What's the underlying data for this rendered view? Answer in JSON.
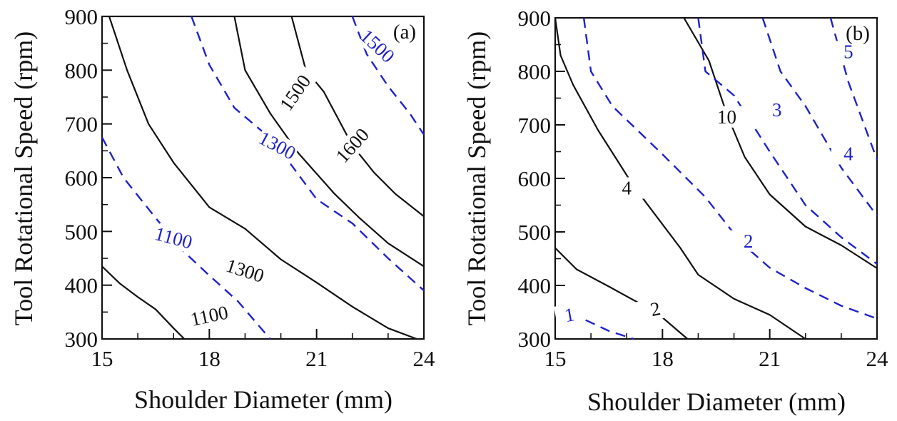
{
  "colors": {
    "black_contour": "#111111",
    "blue_contour": "#1f22c8",
    "axis": "#111111"
  },
  "chart_data": [
    {
      "type": "contour",
      "panel_label": "(a)",
      "xlabel": "Shoulder Diameter (mm)",
      "ylabel": "Tool Rotational Speed (rpm)",
      "xlim": [
        15,
        24
      ],
      "ylim": [
        300,
        900
      ],
      "xticks": [
        15,
        18,
        21,
        24
      ],
      "xtick_labels": [
        "15",
        "18",
        "21",
        "24"
      ],
      "yticks": [
        300,
        400,
        500,
        600,
        700,
        800,
        900
      ],
      "ytick_labels": [
        "300",
        "400",
        "500",
        "600",
        "700",
        "800",
        "900"
      ],
      "grid": false,
      "series": [
        {
          "label": "1100",
          "style": "solid",
          "color": "#111111",
          "points": [
            [
              15,
              435
            ],
            [
              15.5,
              403
            ],
            [
              16,
              378
            ],
            [
              16.5,
              355
            ],
            [
              17,
              320
            ],
            [
              17.3,
              300
            ]
          ]
        },
        {
          "label": "1300",
          "style": "solid",
          "color": "#111111",
          "points": [
            [
              15.2,
              900
            ],
            [
              15.7,
              800
            ],
            [
              16.3,
              700
            ],
            [
              17.0,
              628
            ],
            [
              18.0,
              545
            ],
            [
              19.0,
              505
            ],
            [
              20.0,
              448
            ],
            [
              21.0,
              405
            ],
            [
              22.0,
              360
            ],
            [
              23.0,
              320
            ],
            [
              23.8,
              300
            ]
          ]
        },
        {
          "label": "1500",
          "style": "solid",
          "color": "#111111",
          "points": [
            [
              18.7,
              900
            ],
            [
              19.0,
              800
            ],
            [
              19.7,
              720
            ],
            [
              20.5,
              645
            ],
            [
              21.5,
              570
            ],
            [
              22.2,
              525
            ],
            [
              23.0,
              478
            ],
            [
              24.0,
              435
            ]
          ]
        },
        {
          "label": "1600",
          "style": "solid",
          "color": "#111111",
          "points": [
            [
              20.3,
              900
            ],
            [
              20.7,
              800
            ],
            [
              21.2,
              760
            ],
            [
              22.0,
              660
            ],
            [
              22.6,
              610
            ],
            [
              23.2,
              570
            ],
            [
              24.0,
              528
            ]
          ]
        },
        {
          "label": "1100",
          "style": "dashed",
          "color": "#1f22c8",
          "points": [
            [
              15,
              675
            ],
            [
              15.6,
              600
            ],
            [
              16.5,
              525
            ],
            [
              17.2,
              468
            ],
            [
              18.0,
              418
            ],
            [
              18.8,
              370
            ],
            [
              19.7,
              300
            ]
          ]
        },
        {
          "label": "1300",
          "style": "dashed",
          "color": "#1f22c8",
          "points": [
            [
              17.5,
              900
            ],
            [
              18.0,
              810
            ],
            [
              18.7,
              730
            ],
            [
              19.8,
              668
            ],
            [
              21.0,
              560
            ],
            [
              22.0,
              515
            ],
            [
              23.0,
              450
            ],
            [
              24.0,
              390
            ]
          ]
        },
        {
          "label": "1500",
          "style": "dashed",
          "color": "#1f22c8",
          "points": [
            [
              22.0,
              900
            ],
            [
              22.4,
              830
            ],
            [
              23.0,
              770
            ],
            [
              23.6,
              720
            ],
            [
              24.0,
              680
            ]
          ]
        }
      ]
    },
    {
      "type": "contour",
      "panel_label": "(b)",
      "xlabel": "Shoulder Diameter (mm)",
      "ylabel": "Tool Rotational Speed (rpm)",
      "xlim": [
        15,
        24
      ],
      "ylim": [
        300,
        900
      ],
      "xticks": [
        15,
        18,
        21,
        24
      ],
      "xtick_labels": [
        "15",
        "18",
        "21",
        "24"
      ],
      "yticks": [
        300,
        400,
        500,
        600,
        700,
        800,
        900
      ],
      "ytick_labels": [
        "300",
        "400",
        "500",
        "600",
        "700",
        "800",
        "900"
      ],
      "grid": false,
      "series": [
        {
          "label": "2",
          "style": "solid",
          "color": "#111111",
          "points": [
            [
              15,
              470
            ],
            [
              15.6,
              430
            ],
            [
              16.5,
              398
            ],
            [
              17.4,
              365
            ],
            [
              18.0,
              340
            ],
            [
              18.7,
              300
            ]
          ]
        },
        {
          "label": "4",
          "style": "solid",
          "color": "#111111",
          "points": [
            [
              15,
              900
            ],
            [
              15.15,
              830
            ],
            [
              15.5,
              775
            ],
            [
              16.2,
              690
            ],
            [
              17.2,
              585
            ],
            [
              18.5,
              470
            ],
            [
              19.0,
              420
            ],
            [
              20.0,
              375
            ],
            [
              21.0,
              345
            ],
            [
              22.0,
              300
            ]
          ]
        },
        {
          "label": "10",
          "style": "solid",
          "color": "#111111",
          "points": [
            [
              18.6,
              900
            ],
            [
              19.3,
              820
            ],
            [
              19.8,
              720
            ],
            [
              20.3,
              640
            ],
            [
              21.0,
              570
            ],
            [
              22.0,
              510
            ],
            [
              23.0,
              475
            ],
            [
              24.0,
              432
            ]
          ]
        },
        {
          "label": "1",
          "style": "dashed",
          "color": "#1f22c8",
          "points": [
            [
              15,
              358
            ],
            [
              15.7,
              340
            ],
            [
              16.5,
              315
            ],
            [
              17.2,
              300
            ]
          ]
        },
        {
          "label": "2",
          "style": "dashed",
          "color": "#1f22c8",
          "points": [
            [
              15.8,
              900
            ],
            [
              16.0,
              800
            ],
            [
              16.6,
              735
            ],
            [
              18.0,
              645
            ],
            [
              19.2,
              565
            ],
            [
              20.2,
              480
            ],
            [
              21.0,
              433
            ],
            [
              22.0,
              395
            ],
            [
              23.0,
              362
            ],
            [
              24.0,
              338
            ]
          ]
        },
        {
          "label": "3",
          "style": "dashed",
          "color": "#1f22c8",
          "points": [
            [
              19.0,
              900
            ],
            [
              19.2,
              800
            ],
            [
              20.0,
              755
            ],
            [
              21.0,
              650
            ],
            [
              22.0,
              550
            ],
            [
              23.0,
              490
            ],
            [
              24.0,
              440
            ]
          ]
        },
        {
          "label": "4",
          "style": "dashed",
          "color": "#1f22c8",
          "points": [
            [
              20.8,
              900
            ],
            [
              21.3,
              800
            ],
            [
              22.0,
              735
            ],
            [
              23.0,
              620
            ],
            [
              24.0,
              530
            ]
          ]
        },
        {
          "label": "5",
          "style": "dashed",
          "color": "#1f22c8",
          "points": [
            [
              22.7,
              900
            ],
            [
              23.2,
              780
            ],
            [
              24.0,
              635
            ]
          ]
        }
      ]
    }
  ]
}
